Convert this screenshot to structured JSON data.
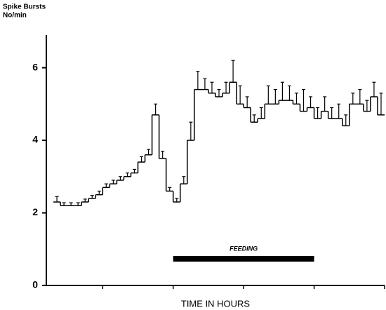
{
  "chart_data": {
    "type": "step",
    "ylabel": [
      "Spike Bursts",
      "No/min"
    ],
    "xlabel": "TIME IN HOURS",
    "annotation": {
      "label": "FEEDING",
      "start": 2,
      "end": 4
    },
    "x": [
      0.3,
      0.4,
      0.5,
      0.6,
      0.7,
      0.8,
      0.9,
      1.0,
      1.1,
      1.2,
      1.3,
      1.4,
      1.5,
      1.6,
      1.7,
      1.8,
      1.9,
      2.0,
      2.1,
      2.2,
      2.3,
      2.4,
      2.5,
      2.6,
      2.7,
      2.8,
      2.9,
      3.0,
      3.1,
      3.2,
      3.3,
      3.4,
      3.5,
      3.6,
      3.7,
      3.8,
      3.9,
      4.0,
      4.1,
      4.2,
      4.3,
      4.4,
      4.5,
      4.6,
      4.7,
      4.8,
      4.9
    ],
    "step_width": 0.1,
    "values": [
      2.3,
      2.2,
      2.2,
      2.2,
      2.3,
      2.4,
      2.5,
      2.7,
      2.8,
      2.9,
      3.0,
      3.1,
      3.4,
      3.6,
      4.7,
      3.5,
      2.6,
      2.3,
      2.8,
      4.0,
      5.4,
      5.4,
      5.3,
      5.2,
      5.3,
      5.6,
      5.0,
      4.9,
      4.5,
      4.6,
      5.0,
      5.0,
      5.1,
      5.1,
      5.0,
      4.8,
      4.9,
      4.6,
      4.8,
      4.6,
      4.6,
      4.4,
      5.0,
      5.0,
      4.8,
      5.2,
      4.7
    ],
    "errors": [
      0.15,
      0.08,
      0.08,
      0.08,
      0.08,
      0.08,
      0.1,
      0.1,
      0.1,
      0.1,
      0.1,
      0.1,
      0.15,
      0.15,
      0.3,
      0.2,
      0.1,
      0.1,
      0.2,
      0.5,
      0.5,
      0.3,
      0.3,
      0.2,
      0.3,
      0.6,
      0.5,
      0.3,
      0.2,
      0.3,
      0.5,
      0.4,
      0.5,
      0.4,
      0.3,
      0.6,
      0.3,
      0.3,
      0.4,
      0.3,
      0.4,
      0.3,
      0.3,
      0.4,
      0.3,
      0.4,
      0.6
    ],
    "color": "#000000",
    "xlim": [
      0.2,
      5
    ],
    "xticks": [
      1,
      2,
      3,
      4,
      5
    ],
    "ylim": [
      0,
      6.9
    ],
    "yticks": [
      0,
      2,
      4,
      6
    ]
  }
}
